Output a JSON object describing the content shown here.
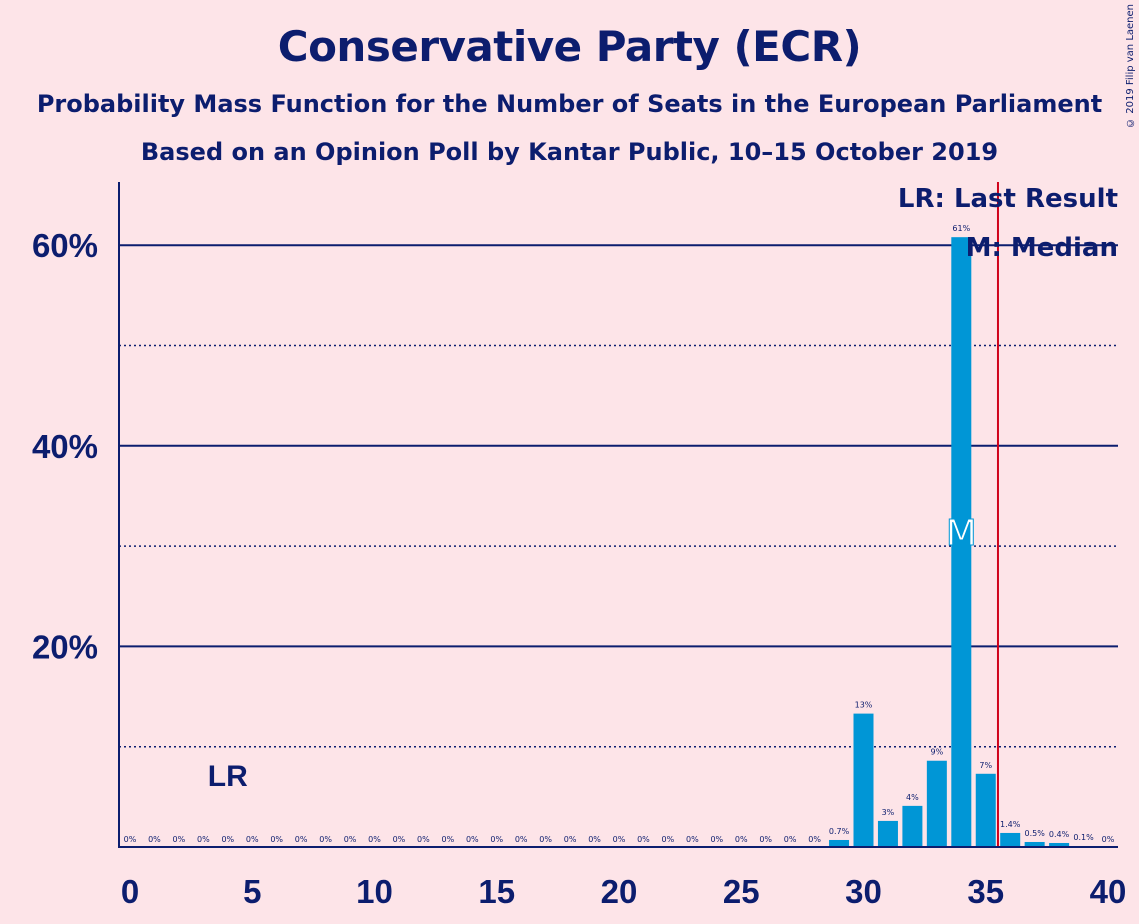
{
  "header": {
    "title": "Conservative Party (ECR)",
    "subtitle1": "Probability Mass Function for the Number of Seats in the European Parliament",
    "subtitle2": "Based on an Opinion Poll by Kantar Public, 10–15 October 2019",
    "copyright": "© 2019 Filip van Laenen"
  },
  "legend": {
    "last_result": "LR: Last Result",
    "median": "M: Median"
  },
  "colors": {
    "background": "#fde4e8",
    "bar": "#0096d6",
    "axis": "#0c1d6e",
    "last_result_line": "#d0021b"
  },
  "chart_data": {
    "type": "bar",
    "x": [
      0,
      1,
      2,
      3,
      4,
      5,
      6,
      7,
      8,
      9,
      10,
      11,
      12,
      13,
      14,
      15,
      16,
      17,
      18,
      19,
      20,
      21,
      22,
      23,
      24,
      25,
      26,
      27,
      28,
      29,
      30,
      31,
      32,
      33,
      34,
      35,
      36,
      37,
      38,
      39,
      40
    ],
    "values": [
      0,
      0,
      0,
      0,
      0,
      0,
      0,
      0,
      0,
      0,
      0,
      0,
      0,
      0,
      0,
      0,
      0,
      0,
      0,
      0,
      0,
      0,
      0,
      0,
      0,
      0,
      0,
      0,
      0,
      0.7,
      13.3,
      2.6,
      4.1,
      8.6,
      60.8,
      7.3,
      1.4,
      0.5,
      0.4,
      0.1,
      0
    ],
    "value_labels": [
      "0%",
      "0%",
      "0%",
      "0%",
      "0%",
      "0%",
      "0%",
      "0%",
      "0%",
      "0%",
      "0%",
      "0%",
      "0%",
      "0%",
      "0%",
      "0%",
      "0%",
      "0%",
      "0%",
      "0%",
      "0%",
      "0%",
      "0%",
      "0%",
      "0%",
      "0%",
      "0%",
      "0%",
      "0%",
      "0.7%",
      "13%",
      "3%",
      "4%",
      "9%",
      "61%",
      "7%",
      "1.4%",
      "0.5%",
      "0.4%",
      "0.1%",
      "0%"
    ],
    "x_ticks": [
      0,
      5,
      10,
      15,
      20,
      25,
      30,
      35,
      40
    ],
    "y_ticks_major": [
      20,
      40,
      60
    ],
    "y_tick_labels": [
      "20%",
      "40%",
      "60%"
    ],
    "y_ticks_minor": [
      10,
      30,
      50
    ],
    "ylim": [
      0,
      66
    ],
    "last_result": 35.5,
    "last_result_label": "LR",
    "last_result_label_seat": 4,
    "median": 34,
    "median_label": "M",
    "title": "",
    "xlabel": "",
    "ylabel": ""
  }
}
